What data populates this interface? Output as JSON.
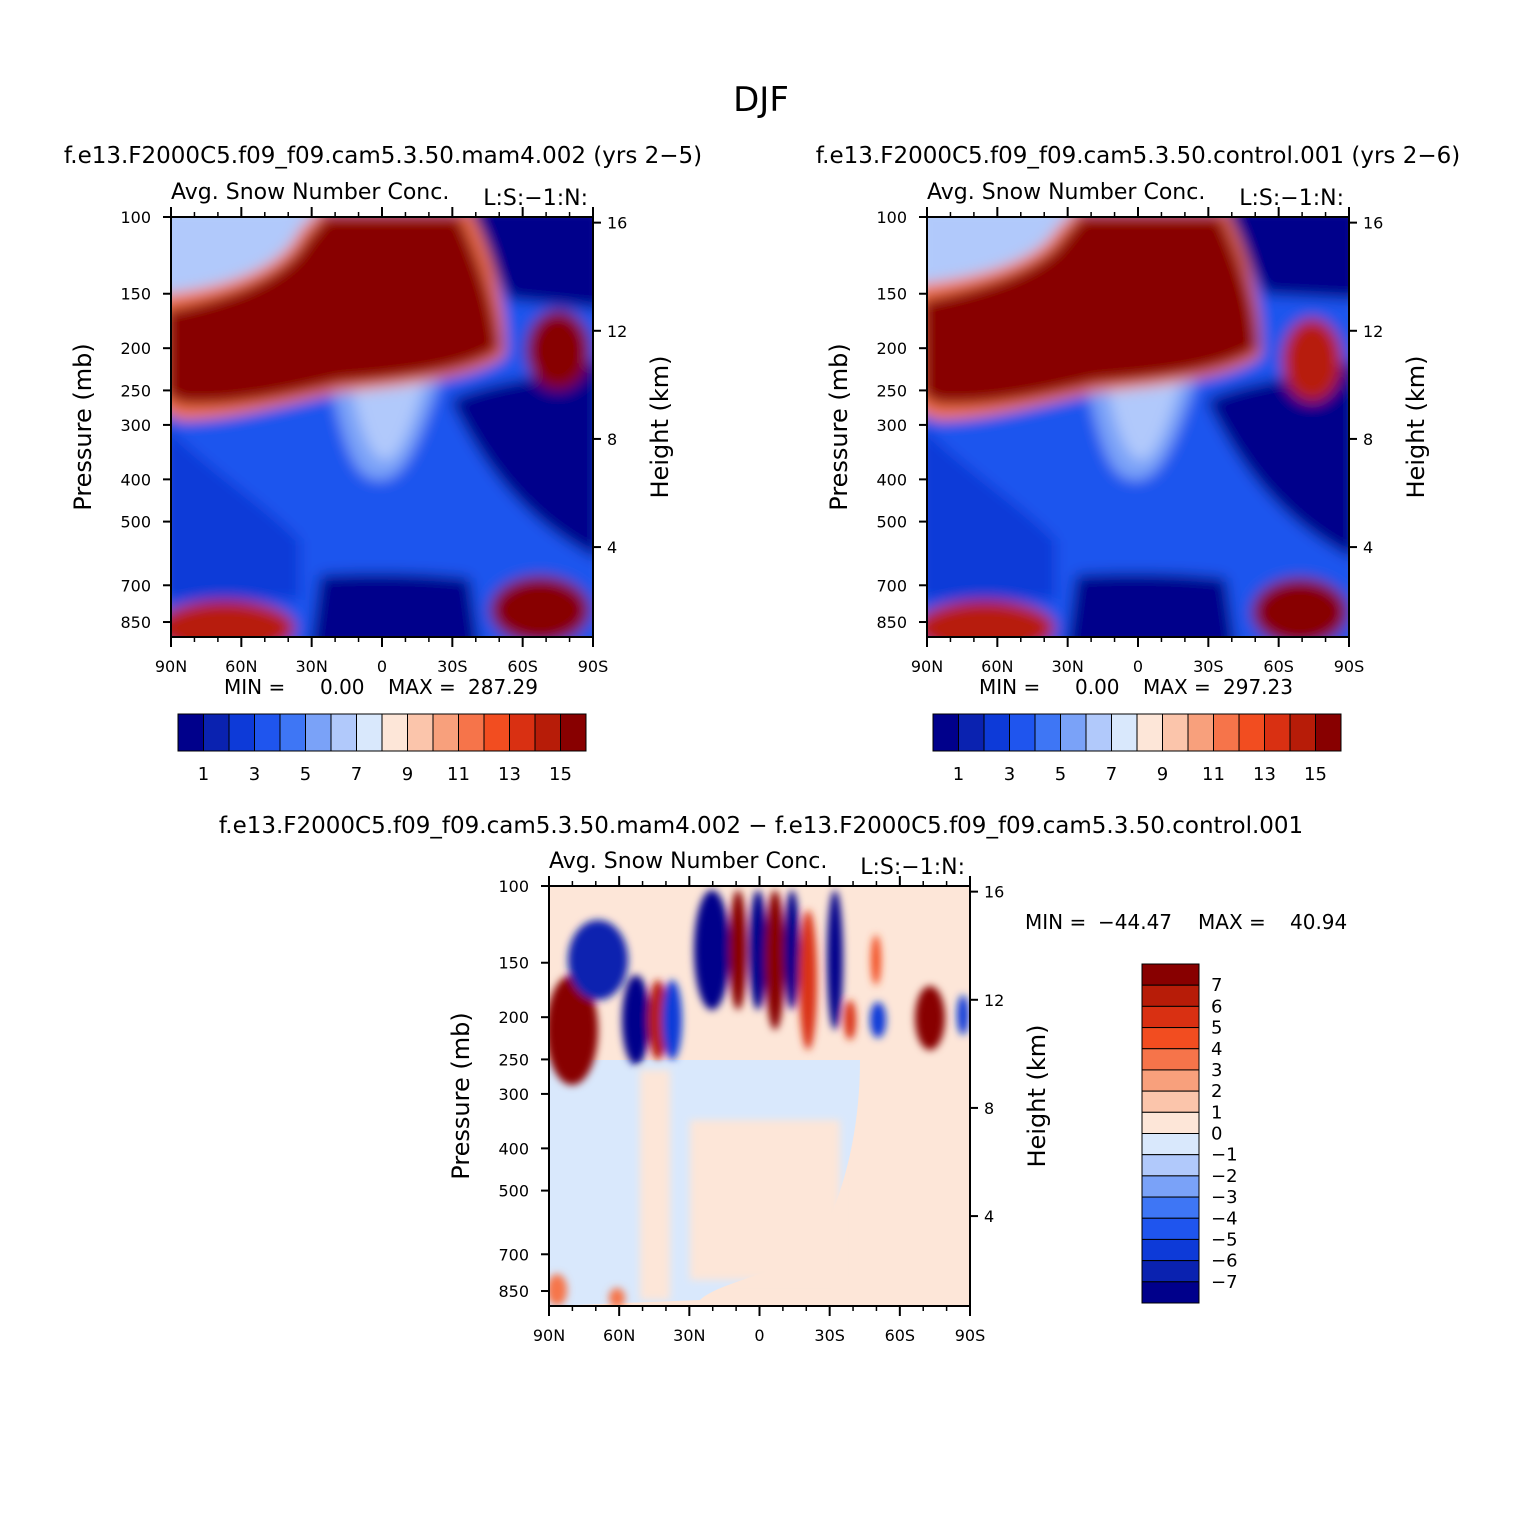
{
  "figure": {
    "title": "DJF",
    "panel_a_title": "f.e13.F2000C5.f09_f09.cam5.3.50.mam4.002 (yrs 2−5)",
    "panel_b_title": "f.e13.F2000C5.f09_f09.cam5.3.50.control.001 (yrs 2−6)",
    "panel_c_title": "f.e13.F2000C5.f09_f09.cam5.3.50.mam4.002 − f.e13.F2000C5.f09_f09.cam5.3.50.control.001"
  },
  "chart_data": [
    {
      "type": "heatmap",
      "left_label": "Avg. Snow Number Conc.",
      "right_label": "L:S:−1:N:",
      "ylabel": "Pressure (mb)",
      "ylabel_right": "Height (km)",
      "x_ticks": [
        "90N",
        "60N",
        "30N",
        "0",
        "30S",
        "60S",
        "90S"
      ],
      "y_ticks": [
        100,
        150,
        200,
        250,
        300,
        400,
        500,
        700,
        850
      ],
      "y_right_ticks": [
        16,
        12,
        8,
        4
      ],
      "y_scale": "log",
      "stats": {
        "min_label": "MIN =",
        "min": "0.00",
        "max_label": "MAX =",
        "max": "287.29"
      },
      "colorbar_labels": [
        "1",
        "3",
        "5",
        "7",
        "9",
        "11",
        "13",
        "15"
      ],
      "colorbar_levels": [
        1,
        2,
        3,
        4,
        5,
        6,
        7,
        8,
        9,
        10,
        11,
        12,
        13,
        14,
        15
      ],
      "colors": [
        "#00008b",
        "#0a22b0",
        "#0d3ad8",
        "#1f55ee",
        "#3e76f5",
        "#7aa2f8",
        "#b1c9fb",
        "#d9e8fc",
        "#fde6d8",
        "#fbc5ab",
        "#f8a07c",
        "#f6744a",
        "#f24d20",
        "#d93012",
        "#b71c08",
        "#880000"
      ]
    },
    {
      "type": "heatmap",
      "left_label": "Avg. Snow Number Conc.",
      "right_label": "L:S:−1:N:",
      "ylabel": "Pressure (mb)",
      "ylabel_right": "Height (km)",
      "x_ticks": [
        "90N",
        "60N",
        "30N",
        "0",
        "30S",
        "60S",
        "90S"
      ],
      "y_ticks": [
        100,
        150,
        200,
        250,
        300,
        400,
        500,
        700,
        850
      ],
      "y_right_ticks": [
        16,
        12,
        8,
        4
      ],
      "y_scale": "log",
      "stats": {
        "min_label": "MIN =",
        "min": "0.00",
        "max_label": "MAX =",
        "max": "297.23"
      },
      "colorbar_labels": [
        "1",
        "3",
        "5",
        "7",
        "9",
        "11",
        "13",
        "15"
      ],
      "colorbar_levels": [
        1,
        2,
        3,
        4,
        5,
        6,
        7,
        8,
        9,
        10,
        11,
        12,
        13,
        14,
        15
      ],
      "colors": [
        "#00008b",
        "#0a22b0",
        "#0d3ad8",
        "#1f55ee",
        "#3e76f5",
        "#7aa2f8",
        "#b1c9fb",
        "#d9e8fc",
        "#fde6d8",
        "#fbc5ab",
        "#f8a07c",
        "#f6744a",
        "#f24d20",
        "#d93012",
        "#b71c08",
        "#880000"
      ]
    },
    {
      "type": "heatmap",
      "left_label": "Avg. Snow Number Conc.",
      "right_label": "L:S:−1:N:",
      "ylabel": "Pressure (mb)",
      "ylabel_right": "Height (km)",
      "x_ticks": [
        "90N",
        "60N",
        "30N",
        "0",
        "30S",
        "60S",
        "90S"
      ],
      "y_ticks": [
        100,
        150,
        200,
        250,
        300,
        400,
        500,
        700,
        850
      ],
      "y_right_ticks": [
        16,
        12,
        8,
        4
      ],
      "y_scale": "log",
      "stats": {
        "min_label": "MIN =",
        "min": "−44.47",
        "max_label": "MAX =",
        "max": "40.94"
      },
      "colorbar_labels": [
        "7",
        "6",
        "5",
        "4",
        "3",
        "2",
        "1",
        "0",
        "−1",
        "−2",
        "−3",
        "−4",
        "−5",
        "−6",
        "−7"
      ],
      "colorbar_levels": [
        7,
        6,
        5,
        4,
        3,
        2,
        1,
        0,
        -1,
        -2,
        -3,
        -4,
        -5,
        -6,
        -7
      ],
      "colors": [
        "#880000",
        "#b71c08",
        "#d93012",
        "#f24d20",
        "#f6744a",
        "#f8a07c",
        "#fbc5ab",
        "#fde6d8",
        "#d9e8fc",
        "#b1c9fb",
        "#7aa2f8",
        "#3e76f5",
        "#1f55ee",
        "#0d3ad8",
        "#0a22b0",
        "#00008b"
      ]
    }
  ]
}
